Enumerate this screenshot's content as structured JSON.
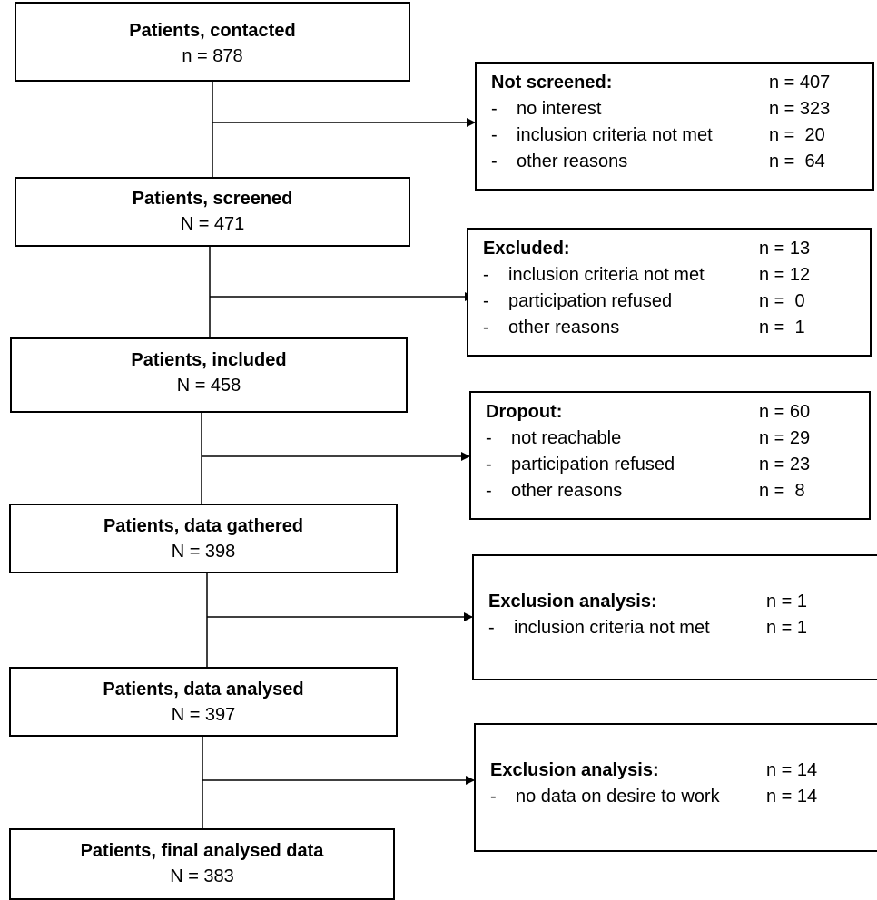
{
  "main_boxes": [
    {
      "title": "Patients, contacted",
      "count": "n = 878"
    },
    {
      "title": "Patients, screened",
      "count": "N = 471"
    },
    {
      "title": "Patients, included",
      "count": "N = 458"
    },
    {
      "title": "Patients, data gathered",
      "count": "N = 398"
    },
    {
      "title": "Patients, data analysed",
      "count": "N = 397"
    },
    {
      "title": "Patients, final analysed data",
      "count": "N = 383"
    }
  ],
  "side_boxes": [
    {
      "heading": "Not screened:",
      "heading_count": "n = 407",
      "items": [
        {
          "dash": "-",
          "label": "no interest",
          "count": "n = 323"
        },
        {
          "dash": "-",
          "label": "inclusion criteria not met",
          "count": "n =  20"
        },
        {
          "dash": "-",
          "label": "other reasons",
          "count": "n =  64"
        }
      ]
    },
    {
      "heading": "Excluded:",
      "heading_count": "n = 13",
      "items": [
        {
          "dash": "-",
          "label": "inclusion criteria not met",
          "count": "n = 12"
        },
        {
          "dash": "-",
          "label": "participation refused",
          "count": "n =  0"
        },
        {
          "dash": "-",
          "label": "other reasons",
          "count": "n =  1"
        }
      ]
    },
    {
      "heading": "Dropout:",
      "heading_count": "n = 60",
      "items": [
        {
          "dash": "-",
          "label": "not reachable",
          "count": "n = 29"
        },
        {
          "dash": "-",
          "label": "participation refused",
          "count": "n = 23"
        },
        {
          "dash": "-",
          "label": "other reasons",
          "count": "n =  8"
        }
      ]
    },
    {
      "heading": "Exclusion analysis:",
      "heading_count": "n = 1",
      "items": [
        {
          "dash": "-",
          "label": "inclusion criteria not met",
          "count": "n = 1"
        }
      ]
    },
    {
      "heading": "Exclusion analysis:",
      "heading_count": "n = 14",
      "items": [
        {
          "dash": "-",
          "label": "no data on desire to work",
          "count": "n = 14"
        }
      ]
    }
  ]
}
